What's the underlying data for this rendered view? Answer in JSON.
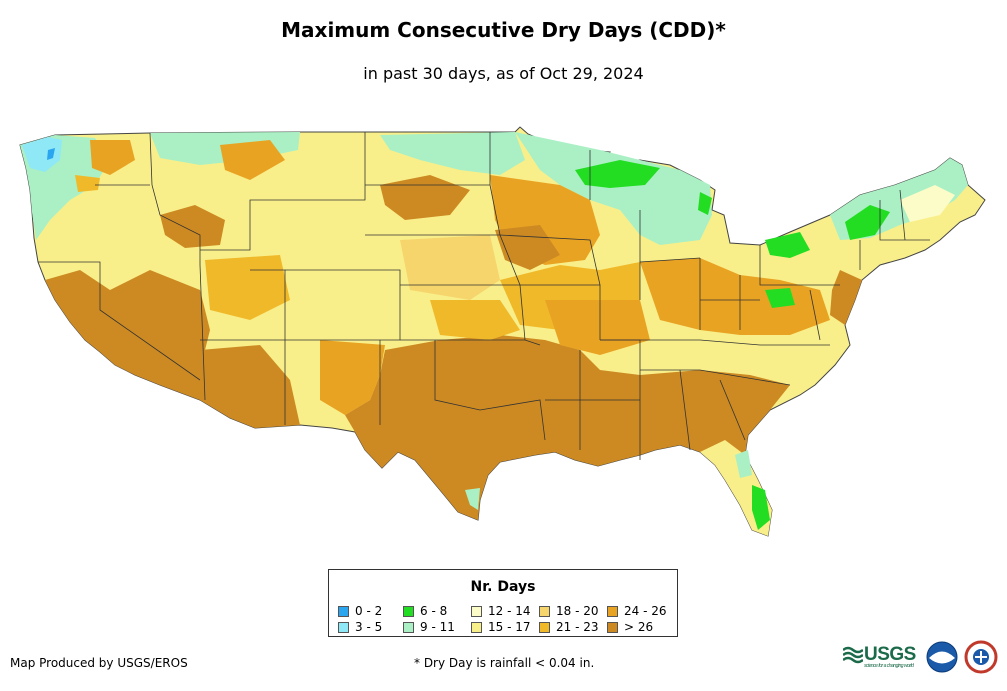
{
  "title": "Maximum Consecutive Dry Days (CDD)*",
  "subtitle": "in past 30 days, as of Oct 29, 2024",
  "legend": {
    "title": "Nr. Days",
    "items": [
      {
        "label": "0 - 2",
        "color": "#2aa6f0"
      },
      {
        "label": "3 - 5",
        "color": "#8fe8f5"
      },
      {
        "label": "6 - 8",
        "color": "#22dd22"
      },
      {
        "label": "9 - 11",
        "color": "#aaf0c4"
      },
      {
        "label": "12 - 14",
        "color": "#fcfcc8"
      },
      {
        "label": "15 - 17",
        "color": "#f9ef8a"
      },
      {
        "label": "18 - 20",
        "color": "#f6d56c"
      },
      {
        "label": "21 - 23",
        "color": "#f0b92a"
      },
      {
        "label": "24 - 26",
        "color": "#e9a323"
      },
      {
        "label": "> 26",
        "color": "#cd8a22"
      }
    ]
  },
  "footer": {
    "credit": "Map Produced by USGS/EROS",
    "note": "* Dry Day is rainfall < 0.04 in."
  },
  "logos": {
    "usgs_text": "USGS",
    "usgs_tagline": "science for a changing world"
  }
}
